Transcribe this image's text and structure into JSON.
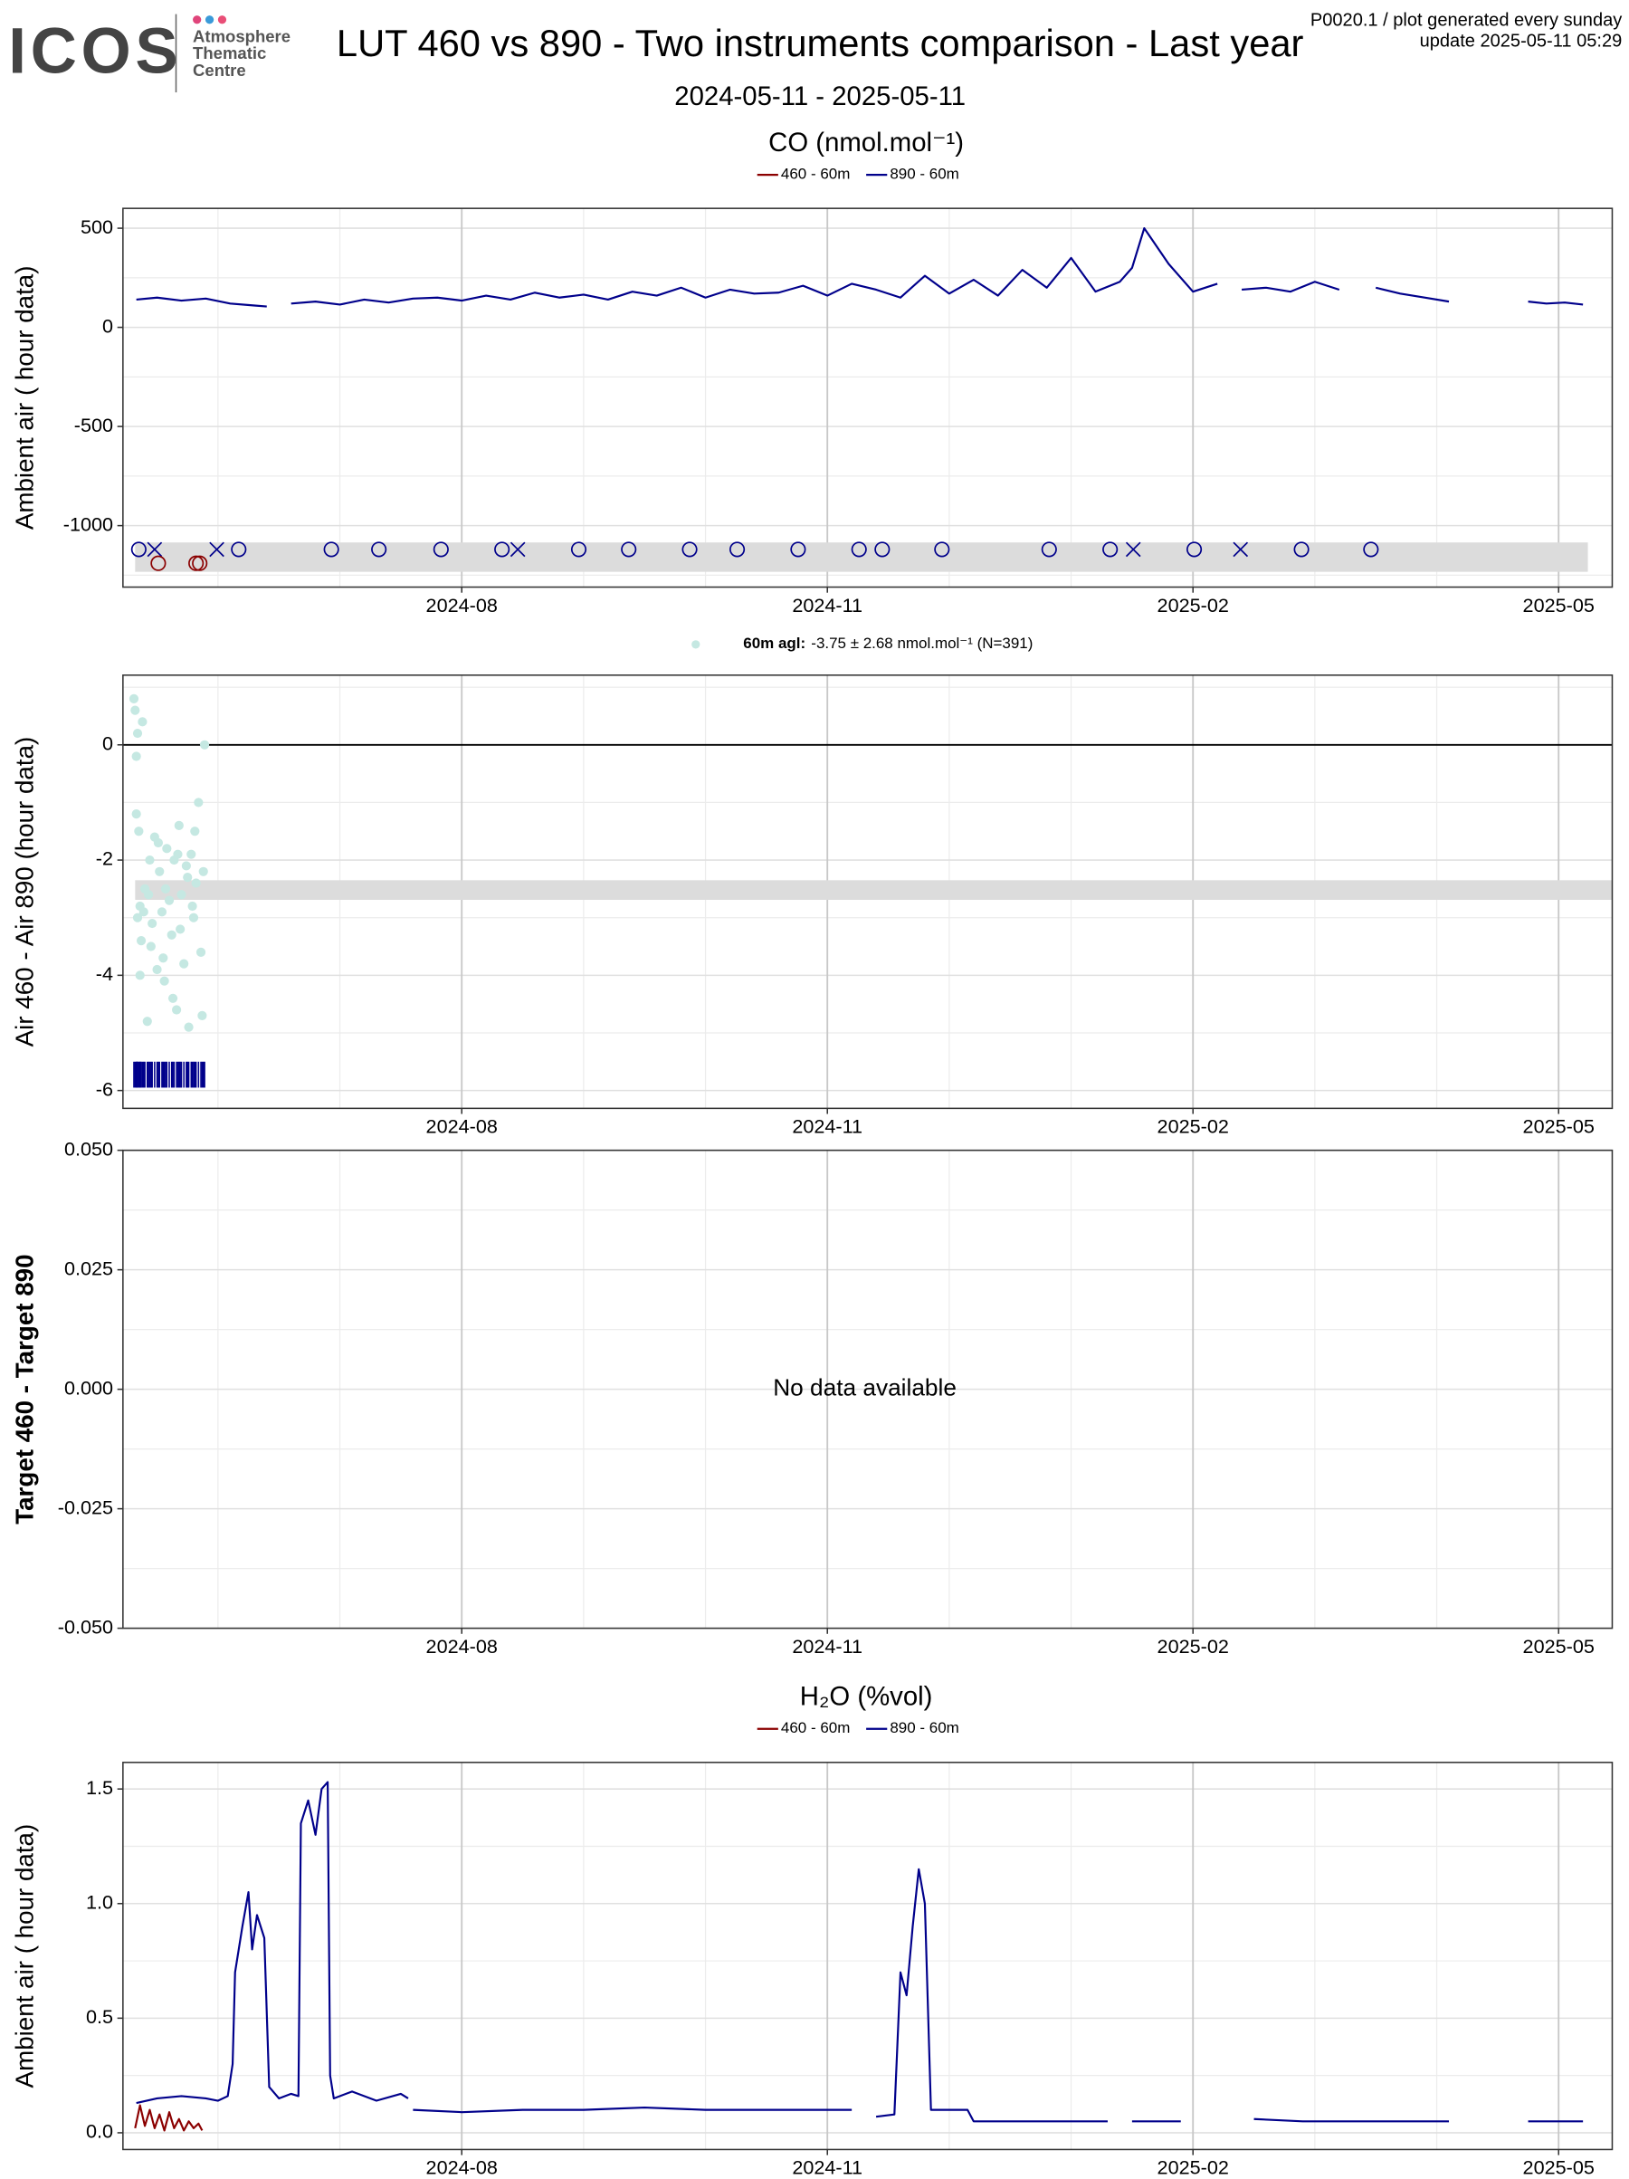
{
  "header": {
    "logo": "ICOS",
    "logo_sub": [
      "Atmosphere",
      "Thematic",
      "Centre"
    ],
    "title": "LUT 460 vs 890 - Two instruments comparison - Last year",
    "subtitle": "2024-05-11 - 2025-05-11",
    "info": [
      "P0020.1 / plot generated every sunday",
      "update  2025-05-11 05:29"
    ]
  },
  "chart_data": [
    {
      "type": "line",
      "title": "CO (nmol.mol⁻¹)",
      "ylabel": "Ambient air ( hour data)",
      "xlim": [
        0.22,
        12.44
      ],
      "xticks": [
        {
          "value": 3,
          "label": "2024-08"
        },
        {
          "value": 6,
          "label": "2024-11"
        },
        {
          "value": 9,
          "label": "2025-02"
        },
        {
          "value": 12,
          "label": "2025-05"
        }
      ],
      "xminor": [
        1,
        2,
        4,
        5,
        7,
        8,
        10,
        11
      ],
      "ylim": [
        -1310,
        600
      ],
      "yticks": [
        -1000,
        -500,
        0,
        500
      ],
      "yminor": [
        -1250,
        -750,
        -250,
        250
      ],
      "grid": true,
      "series": [
        {
          "name": "460 - 60m",
          "color": "#8b0000",
          "x": [],
          "values": []
        },
        {
          "name": "890 - 60m",
          "color": "#00008b",
          "x": [
            0.33,
            0.5,
            0.7,
            0.9,
            1.1,
            1.3,
            1.4,
            1.5,
            1.6,
            1.8,
            2.0,
            2.2,
            2.4,
            2.6,
            2.8,
            3.0,
            3.2,
            3.4,
            3.6,
            3.8,
            4.0,
            4.2,
            4.4,
            4.6,
            4.8,
            5.0,
            5.2,
            5.4,
            5.6,
            5.8,
            6.0,
            6.2,
            6.4,
            6.6,
            6.8,
            7.0,
            7.2,
            7.4,
            7.6,
            7.8,
            8.0,
            8.2,
            8.4,
            8.5,
            8.6,
            8.8,
            9.0,
            9.2,
            9.3,
            9.4,
            9.6,
            9.8,
            10.0,
            10.2,
            10.35,
            10.5,
            10.7,
            10.9,
            11.1,
            11.4,
            11.75,
            11.9,
            12.05,
            12.2
          ],
          "values": [
            140,
            150,
            135,
            145,
            120,
            110,
            105,
            null,
            120,
            130,
            115,
            140,
            125,
            145,
            150,
            135,
            160,
            140,
            175,
            150,
            165,
            140,
            180,
            160,
            200,
            150,
            190,
            170,
            175,
            210,
            160,
            220,
            190,
            150,
            260,
            170,
            240,
            160,
            290,
            200,
            350,
            180,
            230,
            300,
            500,
            320,
            180,
            220,
            null,
            190,
            200,
            180,
            230,
            190,
            null,
            200,
            170,
            150,
            130,
            null,
            130,
            120,
            125,
            115
          ]
        }
      ],
      "markers": [
        {
          "shape": "circle",
          "color": "#00008b",
          "x": [
            0.35,
            1.17,
            1.93,
            2.32,
            2.83,
            3.33,
            3.96,
            4.37,
            4.87,
            5.26,
            5.76,
            6.26,
            6.45,
            6.94,
            7.82,
            8.32,
            9.01,
            9.89,
            10.46
          ],
          "values": [
            -1120,
            -1120,
            -1120,
            -1120,
            -1120,
            -1120,
            -1120,
            -1120,
            -1120,
            -1120,
            -1120,
            -1120,
            -1120,
            -1120,
            -1120,
            -1120,
            -1120,
            -1120,
            -1120
          ]
        },
        {
          "shape": "cross",
          "color": "#00008b",
          "x": [
            0.48,
            0.99,
            3.46,
            8.51,
            9.39
          ],
          "values": [
            -1120,
            -1120,
            -1120,
            -1120,
            -1120
          ]
        },
        {
          "shape": "circle",
          "color": "#8b0000",
          "x": [
            0.51,
            0.82,
            0.85
          ],
          "values": [
            -1190,
            -1190,
            -1190
          ]
        }
      ],
      "band": {
        "x": [
          0.32,
          12.24
        ],
        "y": [
          -1233,
          -1085
        ],
        "color": "#dcdcdc"
      }
    },
    {
      "type": "scatter",
      "legend_label": "60m agl:",
      "legend_text": "-3.75 ± 2.68 nmol.mol⁻¹   (N=391)",
      "ylabel": "Air 460 - Air 890 (hour data)",
      "color": "#c5e8e2",
      "xlim": [
        0.22,
        12.44
      ],
      "xticks": [
        {
          "value": 3,
          "label": "2024-08"
        },
        {
          "value": 6,
          "label": "2024-11"
        },
        {
          "value": 9,
          "label": "2025-02"
        },
        {
          "value": 12,
          "label": "2025-05"
        }
      ],
      "xminor": [
        1,
        2,
        4,
        5,
        7,
        8,
        10,
        11
      ],
      "ylim": [
        -6.31,
        1.21
      ],
      "yticks": [
        -6,
        -4,
        -2,
        0
      ],
      "yminor": [
        -5,
        -3,
        -1,
        1
      ],
      "grid": true,
      "x": [
        0.31,
        0.32,
        0.33,
        0.34,
        0.35,
        0.36,
        0.37,
        0.38,
        0.4,
        0.42,
        0.44,
        0.46,
        0.48,
        0.5,
        0.52,
        0.54,
        0.56,
        0.58,
        0.6,
        0.62,
        0.64,
        0.66,
        0.68,
        0.7,
        0.72,
        0.74,
        0.76,
        0.78,
        0.8,
        0.82,
        0.84,
        0.86,
        0.88,
        0.89,
        0.33,
        0.36,
        0.39,
        0.45,
        0.51,
        0.57,
        0.63,
        0.69,
        0.75,
        0.81,
        0.87,
        0.34,
        0.43,
        0.55,
        0.67,
        0.79
      ],
      "values": [
        0.8,
        0.6,
        -0.2,
        0.2,
        -1.5,
        -2.8,
        -3.4,
        0.4,
        -2.5,
        -4.8,
        -2.0,
        -3.1,
        -1.6,
        -3.9,
        -2.2,
        -2.9,
        -4.1,
        -1.8,
        -2.7,
        -3.3,
        -2.0,
        -4.6,
        -1.4,
        -2.6,
        -3.8,
        -2.1,
        -4.9,
        -1.9,
        -3.0,
        -2.4,
        -1.0,
        -3.6,
        -2.2,
        0.0,
        -1.2,
        -4.0,
        -2.9,
        -3.5,
        -1.7,
        -2.5,
        -4.4,
        -3.2,
        -2.3,
        -1.5,
        -4.7,
        -3.0,
        -2.6,
        -3.7,
        -1.9,
        -2.8
      ],
      "hline": 0,
      "band": {
        "x": [
          0.32,
          12.44
        ],
        "y": [
          -2.69,
          -2.35
        ],
        "color": "#dcdcdc"
      },
      "rug": {
        "color": "#00008b",
        "y": [
          -5.95,
          -5.5
        ]
      }
    },
    {
      "type": "empty",
      "ylabel": "Target 460 - Target 890",
      "message": "No data available",
      "xlim": [
        0.22,
        12.44
      ],
      "xticks": [
        {
          "value": 3,
          "label": "2024-08"
        },
        {
          "value": 6,
          "label": "2024-11"
        },
        {
          "value": 9,
          "label": "2025-02"
        },
        {
          "value": 12,
          "label": "2025-05"
        }
      ],
      "xminor": [
        1,
        2,
        4,
        5,
        7,
        8,
        10,
        11
      ],
      "ylim": [
        -0.05,
        0.05
      ],
      "yticks": [
        {
          "value": -0.05,
          "label": "-0.050"
        },
        {
          "value": -0.025,
          "label": "-0.025"
        },
        {
          "value": 0,
          "label": "0.000"
        },
        {
          "value": 0.025,
          "label": "0.025"
        },
        {
          "value": 0.05,
          "label": "0.050"
        }
      ],
      "yminor": [
        -0.0375,
        -0.0125,
        0.0125,
        0.0375
      ],
      "grid": true
    },
    {
      "type": "line",
      "title": "H₂O (%vol)",
      "ylabel": "Ambient air ( hour data)",
      "xlim": [
        0.22,
        12.44
      ],
      "xticks": [
        {
          "value": 3,
          "label": "2024-08"
        },
        {
          "value": 6,
          "label": "2024-11"
        },
        {
          "value": 9,
          "label": "2025-02"
        },
        {
          "value": 12,
          "label": "2025-05"
        }
      ],
      "xminor": [
        1,
        2,
        4,
        5,
        7,
        8,
        10,
        11
      ],
      "ylim": [
        -0.073,
        1.616
      ],
      "yticks": [
        {
          "value": 0,
          "label": "0.0"
        },
        0.5,
        {
          "value": 1,
          "label": "1.0"
        },
        1.5
      ],
      "yminor": [
        0.25,
        0.75,
        1.25
      ],
      "grid": true,
      "series": [
        {
          "name": "460 - 60m",
          "color": "#8b0000",
          "x": [
            0.32,
            0.36,
            0.4,
            0.44,
            0.48,
            0.52,
            0.56,
            0.6,
            0.64,
            0.68,
            0.72,
            0.76,
            0.8,
            0.84,
            0.87
          ],
          "values": [
            0.02,
            0.12,
            0.03,
            0.1,
            0.02,
            0.08,
            0.01,
            0.09,
            0.02,
            0.06,
            0.01,
            0.05,
            0.02,
            0.04,
            0.01
          ]
        },
        {
          "name": "890 - 60m",
          "color": "#00008b",
          "x": [
            0.33,
            0.5,
            0.7,
            0.9,
            1.0,
            1.08,
            1.12,
            1.14,
            1.2,
            1.25,
            1.28,
            1.32,
            1.38,
            1.42,
            1.5,
            1.6,
            1.66,
            1.68,
            1.74,
            1.8,
            1.85,
            1.9,
            1.92,
            1.95,
            2.1,
            2.3,
            2.5,
            2.56,
            2.58,
            2.6,
            3.0,
            3.5,
            4.0,
            4.5,
            5.0,
            5.5,
            6.0,
            6.2,
            6.3,
            6.4,
            6.55,
            6.6,
            6.65,
            6.7,
            6.75,
            6.8,
            6.85,
            7.0,
            7.15,
            7.2,
            7.6,
            8.0,
            8.3,
            8.4,
            8.5,
            8.9,
            9.1,
            9.5,
            9.9,
            10.2,
            10.5,
            10.9,
            11.1,
            11.2,
            11.75,
            12.2
          ],
          "values": [
            0.13,
            0.15,
            0.16,
            0.15,
            0.14,
            0.16,
            0.3,
            0.7,
            0.9,
            1.05,
            0.8,
            0.95,
            0.85,
            0.2,
            0.15,
            0.17,
            0.16,
            1.35,
            1.45,
            1.3,
            1.5,
            1.53,
            0.25,
            0.15,
            0.18,
            0.14,
            0.17,
            0.15,
            null,
            0.1,
            0.09,
            0.1,
            0.1,
            0.11,
            0.1,
            0.1,
            0.1,
            0.1,
            null,
            0.07,
            0.08,
            0.7,
            0.6,
            0.9,
            1.15,
            1.0,
            0.1,
            0.1,
            0.1,
            0.05,
            0.05,
            0.05,
            0.05,
            null,
            0.05,
            0.05,
            null,
            0.06,
            0.05,
            0.05,
            0.05,
            0.05,
            0.05,
            null,
            0.05,
            0.05
          ]
        }
      ]
    }
  ]
}
